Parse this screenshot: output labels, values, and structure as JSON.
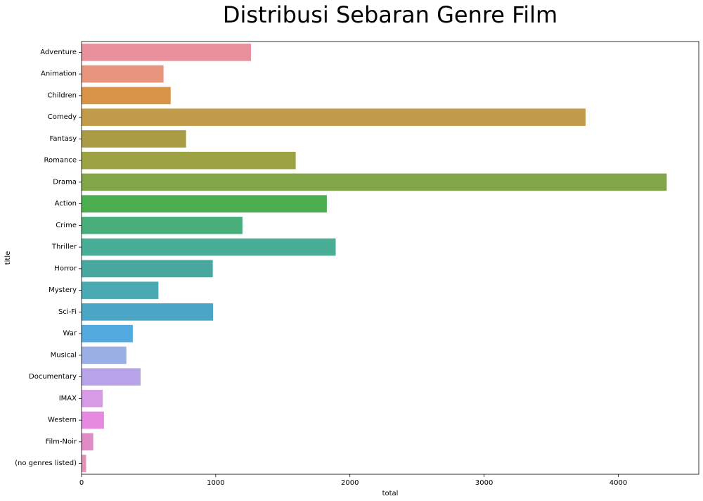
{
  "chart_data": {
    "type": "bar",
    "orientation": "horizontal",
    "title": "Distribusi Sebaran Genre Film",
    "xlabel": "total",
    "ylabel": "title",
    "xlim": [
      0,
      4600
    ],
    "xticks": [
      0,
      1000,
      2000,
      3000,
      4000
    ],
    "grid": false,
    "categories": [
      "Adventure",
      "Animation",
      "Children",
      "Comedy",
      "Fantasy",
      "Romance",
      "Drama",
      "Action",
      "Crime",
      "Thriller",
      "Horror",
      "Mystery",
      "Sci-Fi",
      "War",
      "Musical",
      "Documentary",
      "IMAX",
      "Western",
      "Film-Noir",
      "(no genres listed)"
    ],
    "values": [
      1263,
      611,
      664,
      3756,
      779,
      1596,
      4361,
      1828,
      1199,
      1894,
      978,
      573,
      980,
      382,
      334,
      440,
      158,
      167,
      87,
      34
    ],
    "colors": [
      "#e8919c",
      "#e8957e",
      "#d89446",
      "#c19a4a",
      "#aa9c44",
      "#9da343",
      "#81a547",
      "#4bae4e",
      "#4aad7c",
      "#49ae96",
      "#48a8a0",
      "#4aa9b3",
      "#4ba6c5",
      "#52aade",
      "#9aafe3",
      "#b8a3e8",
      "#d69be4",
      "#e68ae0",
      "#e08bc6",
      "#e491b5"
    ]
  }
}
